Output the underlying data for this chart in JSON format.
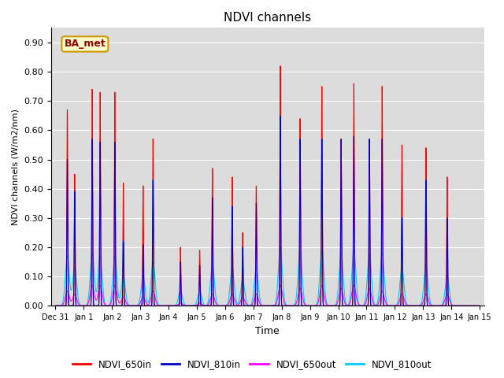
{
  "title": "NDVI channels",
  "xlabel": "Time",
  "ylabel": "NDVI channels (W/m2/nm)",
  "ylim": [
    0.0,
    0.95
  ],
  "background_color": "#dcdcdc",
  "colors": {
    "NDVI_650in": "#ff0000",
    "NDVI_810in": "#0000cc",
    "NDVI_650out": "#ff00ff",
    "NDVI_810out": "#00ccff"
  },
  "annotation_text": "BA_met",
  "annotation_fg": "#8b0000",
  "annotation_bg": "#ffffcc",
  "annotation_edge": "#cc9900",
  "spike_positions": [
    0.42,
    0.68,
    1.3,
    1.58,
    2.1,
    2.4,
    3.1,
    3.45,
    4.42,
    5.1,
    5.55,
    6.25,
    6.62,
    7.1,
    7.95,
    8.65,
    9.42,
    10.1,
    10.55,
    11.1,
    11.55,
    12.25,
    13.1,
    13.85
  ],
  "peak_heights_650in": [
    0.67,
    0.45,
    0.74,
    0.73,
    0.73,
    0.42,
    0.41,
    0.57,
    0.2,
    0.19,
    0.47,
    0.44,
    0.25,
    0.41,
    0.82,
    0.64,
    0.75,
    0.57,
    0.76,
    0.57,
    0.75,
    0.55,
    0.54,
    0.44
  ],
  "peak_heights_810in": [
    0.5,
    0.39,
    0.57,
    0.56,
    0.56,
    0.22,
    0.21,
    0.43,
    0.15,
    0.14,
    0.37,
    0.34,
    0.2,
    0.35,
    0.65,
    0.57,
    0.57,
    0.57,
    0.58,
    0.57,
    0.57,
    0.3,
    0.43,
    0.3
  ],
  "peak_heights_650out": [
    0.05,
    0.04,
    0.07,
    0.07,
    0.07,
    0.03,
    0.03,
    0.05,
    0.01,
    0.01,
    0.04,
    0.04,
    0.03,
    0.04,
    0.07,
    0.06,
    0.07,
    0.06,
    0.07,
    0.06,
    0.05,
    0.04,
    0.04,
    0.04
  ],
  "peak_heights_810out": [
    0.17,
    0.13,
    0.18,
    0.17,
    0.17,
    0.1,
    0.1,
    0.15,
    0.05,
    0.05,
    0.14,
    0.13,
    0.09,
    0.13,
    0.2,
    0.19,
    0.19,
    0.18,
    0.19,
    0.18,
    0.18,
    0.13,
    0.14,
    0.1
  ],
  "yticks": [
    0.0,
    0.1,
    0.2,
    0.3,
    0.4,
    0.5,
    0.6,
    0.7,
    0.8,
    0.9
  ]
}
